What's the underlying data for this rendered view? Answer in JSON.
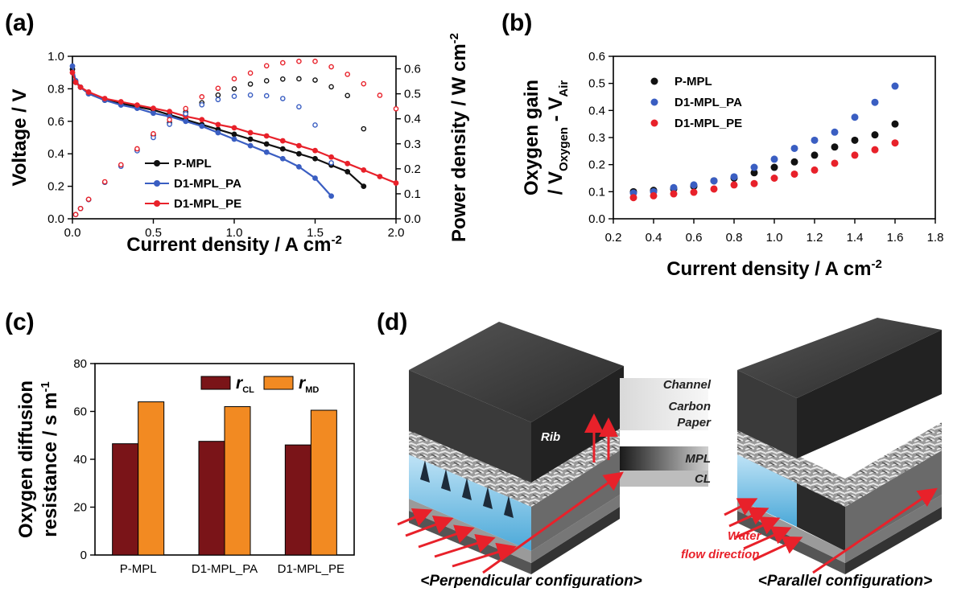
{
  "panels": {
    "a": "(a)",
    "b": "(b)",
    "c": "(c)",
    "d": "(d)"
  },
  "chart_data": [
    {
      "id": "a",
      "type": "line",
      "xlabel": "Current density / A cm⁻²",
      "ylabel": "Voltage / V",
      "y2label": "Power density / W cm⁻²",
      "xlim": [
        0,
        2.0
      ],
      "ylim": [
        0,
        1.0
      ],
      "y2lim": [
        0,
        0.65
      ],
      "xticks": [
        "0.0",
        "0.5",
        "1.0",
        "1.5",
        "2.0"
      ],
      "yticks": [
        "0.0",
        "0.2",
        "0.4",
        "0.6",
        "0.8",
        "1.0"
      ],
      "y2ticks": [
        "0.0",
        "0.1",
        "0.2",
        "0.3",
        "0.4",
        "0.5",
        "0.6"
      ],
      "legend_position": "bottom-left",
      "colors": {
        "P-MPL": "#111111",
        "D1-MPL_PA": "#3a5ec2",
        "D1-MPL_PE": "#e8212a"
      },
      "series": [
        {
          "name": "P-MPL",
          "axis": "left",
          "marker": "filled",
          "x": [
            0.0,
            0.02,
            0.05,
            0.1,
            0.2,
            0.3,
            0.4,
            0.5,
            0.6,
            0.7,
            0.8,
            0.9,
            1.0,
            1.1,
            1.2,
            1.3,
            1.4,
            1.5,
            1.6,
            1.7,
            1.8
          ],
          "y": [
            0.92,
            0.84,
            0.81,
            0.77,
            0.73,
            0.71,
            0.69,
            0.67,
            0.64,
            0.61,
            0.58,
            0.55,
            0.52,
            0.49,
            0.46,
            0.43,
            0.4,
            0.37,
            0.33,
            0.29,
            0.2
          ]
        },
        {
          "name": "D1-MPL_PA",
          "axis": "left",
          "marker": "filled",
          "x": [
            0.0,
            0.02,
            0.05,
            0.1,
            0.2,
            0.3,
            0.4,
            0.5,
            0.6,
            0.7,
            0.8,
            0.9,
            1.0,
            1.1,
            1.2,
            1.3,
            1.4,
            1.5,
            1.6
          ],
          "y": [
            0.94,
            0.85,
            0.81,
            0.77,
            0.73,
            0.7,
            0.68,
            0.65,
            0.63,
            0.6,
            0.57,
            0.53,
            0.49,
            0.45,
            0.41,
            0.37,
            0.32,
            0.25,
            0.14
          ]
        },
        {
          "name": "D1-MPL_PE",
          "axis": "left",
          "marker": "filled",
          "x": [
            0.0,
            0.02,
            0.05,
            0.1,
            0.2,
            0.3,
            0.4,
            0.5,
            0.6,
            0.7,
            0.8,
            0.9,
            1.0,
            1.1,
            1.2,
            1.3,
            1.4,
            1.5,
            1.6,
            1.7,
            1.8,
            1.9,
            2.0
          ],
          "y": [
            0.9,
            0.84,
            0.81,
            0.78,
            0.74,
            0.72,
            0.7,
            0.68,
            0.66,
            0.63,
            0.61,
            0.58,
            0.56,
            0.53,
            0.51,
            0.48,
            0.45,
            0.42,
            0.38,
            0.34,
            0.3,
            0.26,
            0.22
          ]
        },
        {
          "name": "P-MPL power",
          "axis": "right",
          "marker": "open",
          "color_of": "P-MPL",
          "x": [
            0.02,
            0.05,
            0.1,
            0.2,
            0.3,
            0.4,
            0.5,
            0.6,
            0.7,
            0.8,
            0.9,
            1.0,
            1.1,
            1.2,
            1.3,
            1.4,
            1.5,
            1.6,
            1.7,
            1.8
          ],
          "y": [
            0.017,
            0.041,
            0.077,
            0.146,
            0.213,
            0.276,
            0.335,
            0.384,
            0.427,
            0.464,
            0.495,
            0.52,
            0.539,
            0.552,
            0.559,
            0.56,
            0.555,
            0.528,
            0.493,
            0.36
          ]
        },
        {
          "name": "D1-MPL_PA power",
          "axis": "right",
          "marker": "open",
          "color_of": "D1-MPL_PA",
          "x": [
            0.02,
            0.05,
            0.1,
            0.2,
            0.3,
            0.4,
            0.5,
            0.6,
            0.7,
            0.8,
            0.9,
            1.0,
            1.1,
            1.2,
            1.3,
            1.4,
            1.5,
            1.6
          ],
          "y": [
            0.017,
            0.041,
            0.077,
            0.146,
            0.21,
            0.272,
            0.325,
            0.378,
            0.42,
            0.456,
            0.477,
            0.49,
            0.495,
            0.492,
            0.481,
            0.448,
            0.375,
            0.224
          ]
        },
        {
          "name": "D1-MPL_PE power",
          "axis": "right",
          "marker": "open",
          "color_of": "D1-MPL_PE",
          "x": [
            0.02,
            0.05,
            0.1,
            0.2,
            0.3,
            0.4,
            0.5,
            0.6,
            0.7,
            0.8,
            0.9,
            1.0,
            1.1,
            1.2,
            1.3,
            1.4,
            1.5,
            1.6,
            1.7,
            1.8,
            1.9,
            2.0
          ],
          "y": [
            0.017,
            0.041,
            0.078,
            0.148,
            0.216,
            0.28,
            0.34,
            0.396,
            0.441,
            0.488,
            0.522,
            0.56,
            0.583,
            0.612,
            0.624,
            0.63,
            0.63,
            0.608,
            0.578,
            0.54,
            0.494,
            0.44
          ]
        }
      ]
    },
    {
      "id": "b",
      "type": "scatter",
      "xlabel": "Current density / A cm⁻²",
      "ylabel_line1": "Oxygen gain",
      "ylabel_line2": "/ V",
      "ylabel_sub1": "Oxygen",
      "ylabel_mid": " - V",
      "ylabel_sub2": "Air",
      "xlim": [
        0.2,
        1.8
      ],
      "ylim": [
        0,
        0.6
      ],
      "xticks": [
        "0.2",
        "0.4",
        "0.6",
        "0.8",
        "1.0",
        "1.2",
        "1.4",
        "1.6",
        "1.8"
      ],
      "yticks": [
        "0.0",
        "0.1",
        "0.2",
        "0.3",
        "0.4",
        "0.5",
        "0.6"
      ],
      "legend_position": "top-left",
      "x": [
        0.3,
        0.4,
        0.5,
        0.6,
        0.7,
        0.8,
        0.9,
        1.0,
        1.1,
        1.2,
        1.3,
        1.4,
        1.5,
        1.6
      ],
      "series": [
        {
          "name": "P-MPL",
          "color": "#111111",
          "y": [
            0.1,
            0.105,
            0.11,
            0.12,
            0.14,
            0.15,
            0.17,
            0.19,
            0.21,
            0.235,
            0.265,
            0.29,
            0.31,
            0.35
          ]
        },
        {
          "name": "D1-MPL_PA",
          "color": "#3a5ec2",
          "y": [
            0.095,
            0.1,
            0.115,
            0.125,
            0.14,
            0.155,
            0.19,
            0.22,
            0.26,
            0.29,
            0.32,
            0.375,
            0.43,
            0.49
          ]
        },
        {
          "name": "D1-MPL_PE",
          "color": "#e8212a",
          "y": [
            0.078,
            0.085,
            0.092,
            0.098,
            0.11,
            0.125,
            0.13,
            0.15,
            0.165,
            0.18,
            0.205,
            0.235,
            0.255,
            0.28
          ]
        }
      ]
    },
    {
      "id": "c",
      "type": "bar",
      "ylabel_line1": "Oxygen diffusion",
      "ylabel_line2": "resistance / s m",
      "ylabel_sup": "-1",
      "ylim": [
        0,
        80
      ],
      "yticks": [
        "0",
        "20",
        "40",
        "60",
        "80"
      ],
      "categories": [
        "P-MPL",
        "D1-MPL_PA",
        "D1-MPL_PE"
      ],
      "legend_position": "top-right",
      "series": [
        {
          "name": "r",
          "sub": "CL",
          "color": "#7a1418",
          "values": [
            46.5,
            47.5,
            46
          ]
        },
        {
          "name": "r",
          "sub": "MD",
          "color": "#f28a22",
          "values": [
            64,
            62,
            60.5
          ]
        }
      ]
    }
  ],
  "diagram": {
    "labels": {
      "channel": "Channel",
      "carbon1": "Carbon",
      "carbon2": "Paper",
      "mpl": "MPL",
      "cl": "CL",
      "rib": "Rib",
      "water1": "Water",
      "water2": "flow direction"
    },
    "captions": {
      "left": "<Perpendicular configuration>",
      "right": "<Parallel configuration>"
    }
  }
}
